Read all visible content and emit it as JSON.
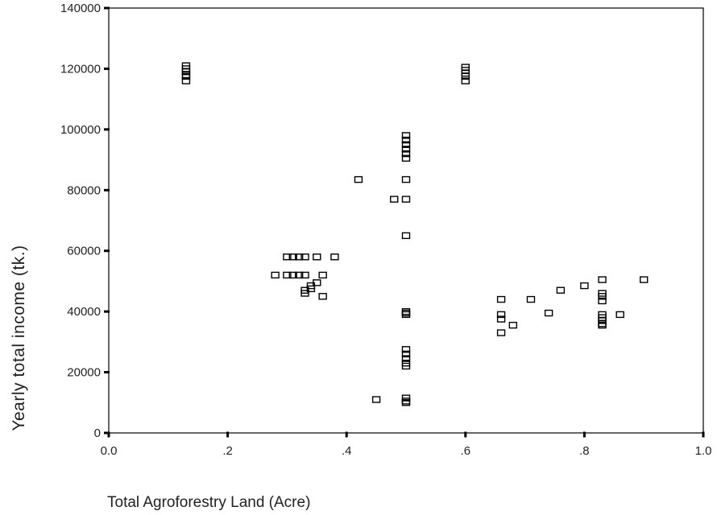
{
  "chart_data": {
    "type": "scatter",
    "title": "",
    "xlabel": "Total Agroforestry Land (Acre)",
    "ylabel": "Yearly total income (tk.)",
    "xlim": [
      0,
      1
    ],
    "ylim": [
      0,
      140000
    ],
    "x_ticks": [
      {
        "value": 0,
        "label": "0.0"
      },
      {
        "value": 0.2,
        "label": ".2"
      },
      {
        "value": 0.4,
        "label": ".4"
      },
      {
        "value": 0.6,
        "label": ".6"
      },
      {
        "value": 0.8,
        "label": ".8"
      },
      {
        "value": 1.0,
        "label": "1.0"
      }
    ],
    "y_ticks": [
      {
        "value": 0,
        "label": "0"
      },
      {
        "value": 20000,
        "label": "20000"
      },
      {
        "value": 40000,
        "label": "40000"
      },
      {
        "value": 60000,
        "label": "60000"
      },
      {
        "value": 80000,
        "label": "80000"
      },
      {
        "value": 100000,
        "label": "100000"
      },
      {
        "value": 120000,
        "label": "120000"
      },
      {
        "value": 140000,
        "label": "140000"
      }
    ],
    "grid": false,
    "marker": "open-square",
    "marker_color": "#000000",
    "series": [
      {
        "points": [
          {
            "x": 0.13,
            "y": 121000
          },
          {
            "x": 0.13,
            "y": 120000
          },
          {
            "x": 0.13,
            "y": 119000
          },
          {
            "x": 0.13,
            "y": 118000
          },
          {
            "x": 0.13,
            "y": 117500
          },
          {
            "x": 0.13,
            "y": 116000
          },
          {
            "x": 0.6,
            "y": 120500
          },
          {
            "x": 0.6,
            "y": 119500
          },
          {
            "x": 0.6,
            "y": 118500
          },
          {
            "x": 0.6,
            "y": 117500
          },
          {
            "x": 0.6,
            "y": 116000
          },
          {
            "x": 0.28,
            "y": 52000
          },
          {
            "x": 0.3,
            "y": 58000
          },
          {
            "x": 0.31,
            "y": 58000
          },
          {
            "x": 0.32,
            "y": 58000
          },
          {
            "x": 0.33,
            "y": 58000
          },
          {
            "x": 0.35,
            "y": 58000
          },
          {
            "x": 0.38,
            "y": 58000
          },
          {
            "x": 0.3,
            "y": 52000
          },
          {
            "x": 0.31,
            "y": 52000
          },
          {
            "x": 0.32,
            "y": 52000
          },
          {
            "x": 0.33,
            "y": 52000
          },
          {
            "x": 0.36,
            "y": 52000
          },
          {
            "x": 0.35,
            "y": 49500
          },
          {
            "x": 0.34,
            "y": 48500
          },
          {
            "x": 0.34,
            "y": 47500
          },
          {
            "x": 0.33,
            "y": 47000
          },
          {
            "x": 0.33,
            "y": 46000
          },
          {
            "x": 0.36,
            "y": 45000
          },
          {
            "x": 0.42,
            "y": 83500
          },
          {
            "x": 0.48,
            "y": 77000
          },
          {
            "x": 0.45,
            "y": 11000
          },
          {
            "x": 0.5,
            "y": 98000
          },
          {
            "x": 0.5,
            "y": 96500
          },
          {
            "x": 0.5,
            "y": 95000
          },
          {
            "x": 0.5,
            "y": 93500
          },
          {
            "x": 0.5,
            "y": 92000
          },
          {
            "x": 0.5,
            "y": 90500
          },
          {
            "x": 0.5,
            "y": 83500
          },
          {
            "x": 0.5,
            "y": 77000
          },
          {
            "x": 0.5,
            "y": 65000
          },
          {
            "x": 0.5,
            "y": 40000
          },
          {
            "x": 0.5,
            "y": 39500
          },
          {
            "x": 0.5,
            "y": 39000
          },
          {
            "x": 0.5,
            "y": 27500
          },
          {
            "x": 0.5,
            "y": 26000
          },
          {
            "x": 0.5,
            "y": 24500
          },
          {
            "x": 0.5,
            "y": 23000
          },
          {
            "x": 0.5,
            "y": 22000
          },
          {
            "x": 0.5,
            "y": 11500
          },
          {
            "x": 0.5,
            "y": 10500
          },
          {
            "x": 0.5,
            "y": 10000
          },
          {
            "x": 0.66,
            "y": 44000
          },
          {
            "x": 0.66,
            "y": 39000
          },
          {
            "x": 0.66,
            "y": 37500
          },
          {
            "x": 0.66,
            "y": 33000
          },
          {
            "x": 0.68,
            "y": 35500
          },
          {
            "x": 0.71,
            "y": 44000
          },
          {
            "x": 0.74,
            "y": 39500
          },
          {
            "x": 0.76,
            "y": 47000
          },
          {
            "x": 0.8,
            "y": 48500
          },
          {
            "x": 0.83,
            "y": 50500
          },
          {
            "x": 0.83,
            "y": 46000
          },
          {
            "x": 0.83,
            "y": 45000
          },
          {
            "x": 0.83,
            "y": 43500
          },
          {
            "x": 0.83,
            "y": 39000
          },
          {
            "x": 0.83,
            "y": 38000
          },
          {
            "x": 0.83,
            "y": 37000
          },
          {
            "x": 0.83,
            "y": 36000
          },
          {
            "x": 0.83,
            "y": 35500
          },
          {
            "x": 0.86,
            "y": 39000
          },
          {
            "x": 0.9,
            "y": 50500
          }
        ]
      }
    ]
  }
}
